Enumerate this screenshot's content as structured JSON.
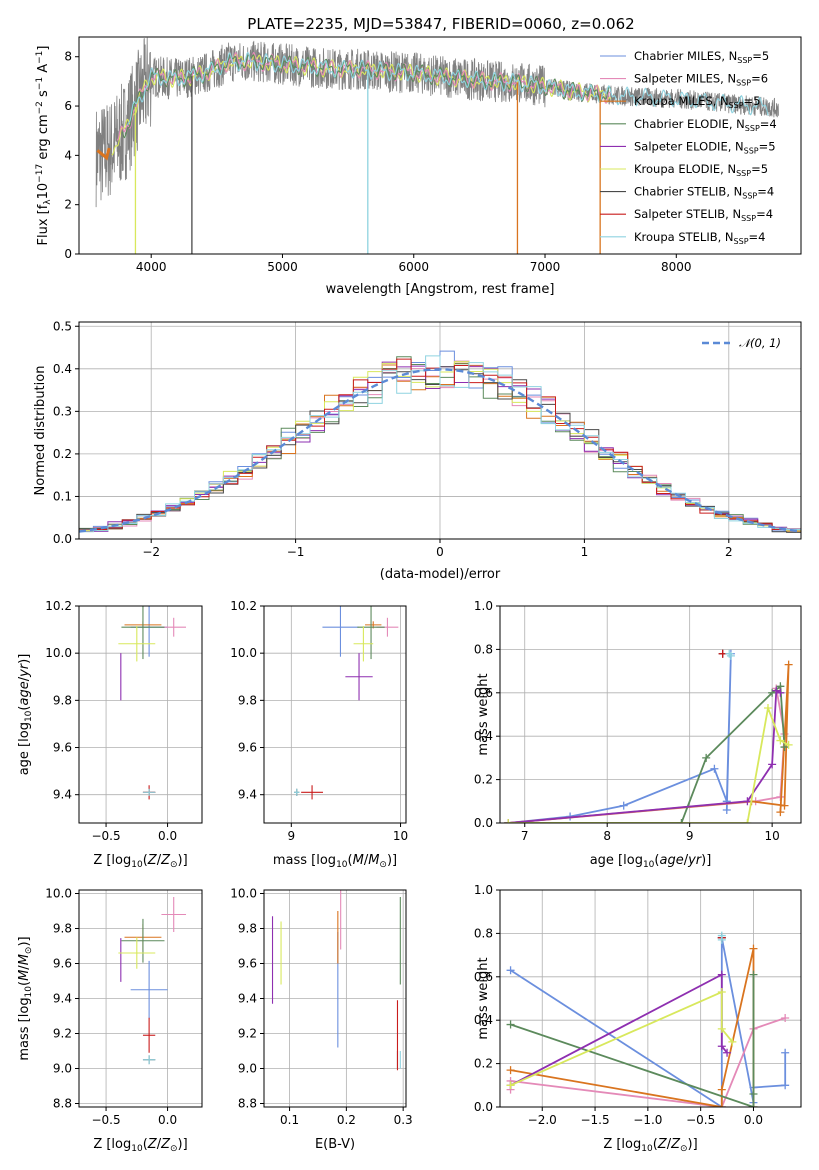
{
  "figure": {
    "title": "PLATE=2235, MJD=53847, FIBERID=0060, z=0.062"
  },
  "colors": {
    "Chabrier MILES": "#6b8fde",
    "Salpeter MILES": "#e48ab8",
    "Kroupa MILES": "#d9741f",
    "Chabrier ELODIE": "#5c8a5c",
    "Salpeter ELODIE": "#8e2fb0",
    "Kroupa ELODIE": "#d8e85c",
    "Chabrier STELIB": "#4a4a4a",
    "Salpeter STELIB": "#c91c1c",
    "Kroupa STELIB": "#8fd3e0",
    "data": "#808080",
    "normal": "#5b8ad6"
  },
  "chart_data": [
    {
      "id": "spectrum",
      "type": "line",
      "title": "PLATE=2235, MJD=53847, FIBERID=0060, z=0.062",
      "xlabel": "wavelength [Angstrom, rest frame]",
      "ylabel": "Flux [f_λ 10^-17 erg cm^-2 s^-1 A^-1]",
      "xlim": [
        3450,
        8950
      ],
      "ylim": [
        0,
        8.8
      ],
      "xticks": [
        4000,
        5000,
        6000,
        7000,
        8000
      ],
      "yticks": [
        0,
        2,
        4,
        6,
        8
      ],
      "legend_position": "top-right",
      "legend": [
        {
          "name": "Chabrier MILES",
          "nssp": "5"
        },
        {
          "name": "Salpeter MILES",
          "nssp": "6"
        },
        {
          "name": "Kroupa MILES",
          "nssp": "5"
        },
        {
          "name": "Chabrier ELODIE",
          "nssp": "4"
        },
        {
          "name": "Salpeter ELODIE",
          "nssp": "5"
        },
        {
          "name": "Kroupa ELODIE",
          "nssp": "5"
        },
        {
          "name": "Chabrier STELIB",
          "nssp": "4"
        },
        {
          "name": "Salpeter STELIB",
          "nssp": "4"
        },
        {
          "name": "Kroupa STELIB",
          "nssp": "4"
        }
      ],
      "continuum": {
        "x": [
          3600,
          3700,
          3800,
          3900,
          4000,
          4200,
          4400,
          4600,
          4800,
          5000,
          5200,
          5400,
          5600,
          5800,
          6000,
          6200,
          6400,
          6600,
          6800,
          7000,
          7200,
          7400,
          7600,
          7800,
          8000,
          8200,
          8400,
          8600,
          8800
        ],
        "y": [
          4.0,
          4.3,
          5.0,
          6.2,
          7.2,
          7.1,
          7.3,
          7.8,
          7.8,
          7.7,
          7.6,
          7.5,
          7.5,
          7.4,
          7.35,
          7.2,
          7.1,
          7.0,
          6.95,
          6.8,
          6.6,
          6.5,
          6.4,
          6.35,
          6.3,
          6.2,
          6.1,
          6.0,
          5.9
        ]
      }
    },
    {
      "id": "residuals",
      "type": "line",
      "xlabel": "(data-model)/error",
      "ylabel": "Normed distribution",
      "xlim": [
        -2.5,
        2.5
      ],
      "ylim": [
        0,
        0.51
      ],
      "xticks": [
        -2,
        -1,
        0,
        1,
        2
      ],
      "yticks": [
        0.0,
        0.1,
        0.2,
        0.3,
        0.4,
        0.5
      ],
      "legend_position": "top-right",
      "legend": [
        "𝒩(0, 1)"
      ],
      "grid": true
    },
    {
      "id": "age-vs-Z",
      "type": "scatter",
      "xlabel": "Z [log10(Z/Z⊙)]",
      "ylabel": "age [log10(age/yr)]",
      "xlim": [
        -0.72,
        0.28
      ],
      "ylim": [
        9.28,
        10.2
      ],
      "xticks": [
        -0.5,
        0.0
      ],
      "yticks": [
        9.4,
        9.6,
        9.8,
        10.0,
        10.2
      ],
      "grid": true
    },
    {
      "id": "age-vs-mass",
      "type": "scatter",
      "xlabel": "mass [log10(M/M⊙)]",
      "ylabel": "",
      "xlim": [
        8.75,
        10.05
      ],
      "ylim": [
        9.28,
        10.2
      ],
      "xticks": [
        9,
        10
      ],
      "yticks": [
        9.4,
        9.6,
        9.8,
        10.0,
        10.2
      ],
      "grid": true
    },
    {
      "id": "weight-vs-age",
      "type": "line",
      "xlabel": "age [log10(age/yr)]",
      "ylabel": "mass weight",
      "xlim": [
        6.7,
        10.35
      ],
      "ylim": [
        0,
        1.0
      ],
      "xticks": [
        7,
        8,
        9,
        10
      ],
      "yticks": [
        0.0,
        0.2,
        0.4,
        0.6,
        0.8,
        1.0
      ],
      "grid": true
    },
    {
      "id": "mass-vs-Z",
      "type": "scatter",
      "xlabel": "Z [log10(Z/Z⊙)]",
      "ylabel": "mass [log10(M/M⊙)]",
      "xlim": [
        -0.72,
        0.28
      ],
      "ylim": [
        8.78,
        10.02
      ],
      "xticks": [
        -0.5,
        0.0
      ],
      "yticks": [
        8.8,
        9.0,
        9.2,
        9.4,
        9.6,
        9.8,
        10.0
      ],
      "grid": true
    },
    {
      "id": "mass-vs-ebv",
      "type": "scatter",
      "xlabel": "E(B-V)",
      "ylabel": "",
      "xlim": [
        0.055,
        0.305
      ],
      "ylim": [
        8.78,
        10.02
      ],
      "xticks": [
        0.1,
        0.2,
        0.3
      ],
      "yticks": [
        8.8,
        9.0,
        9.2,
        9.4,
        9.6,
        9.8,
        10.0
      ],
      "grid": true
    },
    {
      "id": "weight-vs-Z",
      "type": "line",
      "xlabel": "Z [log10(Z/Z⊙)]",
      "ylabel": "mass weight",
      "xlim": [
        -2.4,
        0.45
      ],
      "ylim": [
        0,
        1.0
      ],
      "xticks": [
        -2.0,
        -1.5,
        -1.0,
        -0.5,
        0.0
      ],
      "yticks": [
        0.0,
        0.2,
        0.4,
        0.6,
        0.8,
        1.0
      ],
      "grid": true
    }
  ],
  "models": [
    {
      "name": "Chabrier MILES",
      "Z": -0.15,
      "Zerr": 0.3,
      "age": 10.11,
      "ageErr": 0.25,
      "mass": 9.45,
      "massErr": 0.33,
      "ebv": 0.185,
      "ebvErr": 0.12,
      "wa": [
        [
          6.8,
          0.0
        ],
        [
          7.55,
          0.03
        ],
        [
          8.2,
          0.08
        ],
        [
          9.3,
          0.25
        ],
        [
          9.45,
          0.1
        ],
        [
          9.5,
          0.78
        ],
        [
          9.45,
          0.06
        ]
      ],
      "wz": [
        [
          -2.3,
          0.63
        ],
        [
          -0.3,
          0.0
        ],
        [
          -0.3,
          0.78
        ],
        [
          0.0,
          0.02
        ],
        [
          0.0,
          0.09
        ],
        [
          0.3,
          0.1
        ],
        [
          0.3,
          0.25
        ]
      ]
    },
    {
      "name": "Salpeter MILES",
      "Z": 0.05,
      "Zerr": 0.2,
      "age": 10.11,
      "ageErr": 0.08,
      "mass": 9.88,
      "massErr": 0.2,
      "ebv": 0.19,
      "ebvErr": 0.08,
      "wa": [
        [
          6.8,
          0.0
        ],
        [
          9.8,
          0.1
        ],
        [
          10.1,
          0.12
        ],
        [
          10.15,
          0.41
        ],
        [
          10.05,
          0.62
        ]
      ],
      "wz": [
        [
          -2.3,
          0.08
        ],
        [
          -2.3,
          0.12
        ],
        [
          -0.3,
          0.0
        ],
        [
          0.0,
          0.36
        ],
        [
          0.3,
          0.41
        ]
      ]
    },
    {
      "name": "Kroupa MILES",
      "Z": -0.2,
      "Zerr": 0.3,
      "age": 10.12,
      "ageErr": 0.03,
      "mass": 9.75,
      "massErr": 0.15,
      "ebv": 0.185,
      "ebvErr": 0.1,
      "wa": [
        [
          6.8,
          0.0
        ],
        [
          9.75,
          0.1
        ],
        [
          10.15,
          0.08
        ],
        [
          10.2,
          0.73
        ],
        [
          10.1,
          0.05
        ]
      ],
      "wz": [
        [
          -2.3,
          0.17
        ],
        [
          -0.3,
          0.0
        ],
        [
          -0.3,
          0.08
        ],
        [
          0.0,
          0.73
        ],
        [
          0.0,
          0.0
        ]
      ]
    },
    {
      "name": "Chabrier ELODIE",
      "Z": -0.2,
      "Zerr": 0.35,
      "age": 10.11,
      "ageErr": 0.27,
      "mass": 9.73,
      "massErr": 0.25,
      "ebv": 0.295,
      "ebvErr": 0.15,
      "wa": [
        [
          6.8,
          0.0
        ],
        [
          8.9,
          0.0
        ],
        [
          9.2,
          0.3
        ],
        [
          10.0,
          0.6
        ],
        [
          10.1,
          0.63
        ],
        [
          10.15,
          0.35
        ]
      ],
      "wz": [
        [
          -2.3,
          0.38
        ],
        [
          0.0,
          0.0
        ],
        [
          0.0,
          0.61
        ],
        [
          0.0,
          0.06
        ]
      ]
    },
    {
      "name": "Salpeter ELODIE",
      "Z": -0.38,
      "Zerr": 0.0,
      "age": 9.9,
      "ageErr": 0.2,
      "mass": 9.62,
      "massErr": 0.25,
      "ebv": 0.07,
      "ebvErr": 0.0,
      "wa": [
        [
          6.8,
          0.0
        ],
        [
          9.7,
          0.1
        ],
        [
          10.0,
          0.27
        ],
        [
          10.05,
          0.61
        ],
        [
          10.1,
          0.6
        ]
      ],
      "wz": [
        [
          -2.3,
          0.1
        ],
        [
          -0.3,
          0.61
        ],
        [
          -0.3,
          0.28
        ],
        [
          -0.25,
          0.25
        ]
      ]
    },
    {
      "name": "Kroupa ELODIE",
      "Z": -0.25,
      "Zerr": 0.3,
      "age": 10.04,
      "ageErr": 0.15,
      "mass": 9.66,
      "massErr": 0.18,
      "ebv": 0.085,
      "ebvErr": 0.0,
      "wa": [
        [
          6.8,
          0.0
        ],
        [
          9.7,
          0.0
        ],
        [
          9.95,
          0.53
        ],
        [
          10.1,
          0.38
        ],
        [
          10.2,
          0.36
        ]
      ],
      "wz": [
        [
          -2.3,
          0.1
        ],
        [
          -0.3,
          0.53
        ],
        [
          -0.3,
          0.36
        ],
        [
          -0.2,
          0.3
        ]
      ]
    },
    {
      "name": "Chabrier STELIB",
      "Z": -0.15,
      "Zerr": 0.1,
      "age": 9.41,
      "ageErr": 0.03,
      "mass": 9.05,
      "massErr": 0.05,
      "ebv": 0.29,
      "ebvErr": 0.15,
      "wa": [
        [
          9.4,
          0.78
        ]
      ],
      "wz": [
        [
          -0.3,
          0.78
        ]
      ]
    },
    {
      "name": "Salpeter STELIB",
      "Z": -0.15,
      "Zerr": 0.1,
      "age": 9.41,
      "ageErr": 0.06,
      "mass": 9.19,
      "massErr": 0.2,
      "ebv": 0.29,
      "ebvErr": 0.1,
      "wa": [
        [
          9.4,
          0.78
        ]
      ],
      "wz": [
        [
          -0.3,
          0.78
        ]
      ]
    },
    {
      "name": "Kroupa STELIB",
      "Z": -0.15,
      "Zerr": 0.1,
      "age": 9.41,
      "ageErr": 0.03,
      "mass": 9.05,
      "massErr": 0.05,
      "ebv": 0.295,
      "ebvErr": 0.08,
      "wa": [
        [
          9.48,
          0.78
        ],
        [
          9.5,
          0.77
        ]
      ],
      "wz": [
        [
          -0.3,
          0.77
        ],
        [
          -0.3,
          0.79
        ]
      ]
    }
  ]
}
